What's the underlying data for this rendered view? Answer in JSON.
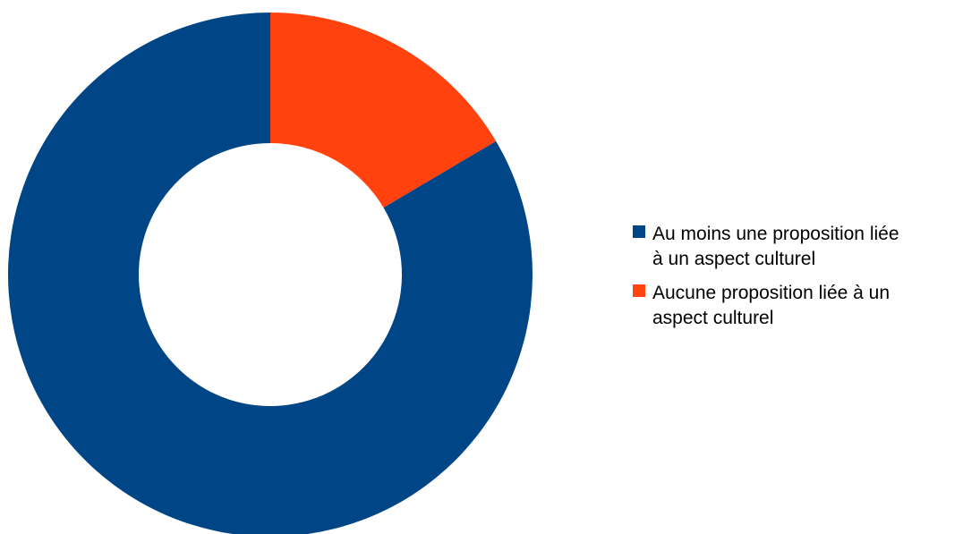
{
  "chart_data": {
    "type": "pie",
    "donut": true,
    "title": "",
    "legend_position": "right",
    "categories": [
      "Au moins une proposition liée à un aspect culturel",
      "Aucune proposition liée à un aspect culturel"
    ],
    "legend_lines": [
      [
        "Au moins une proposition liée",
        "à un aspect culturel"
      ],
      [
        "Aucune proposition liée à un",
        "aspect culturel"
      ]
    ],
    "values": [
      83.5,
      16.5
    ],
    "colors": [
      "#004586",
      "#ff420e"
    ],
    "data_labels": false
  }
}
